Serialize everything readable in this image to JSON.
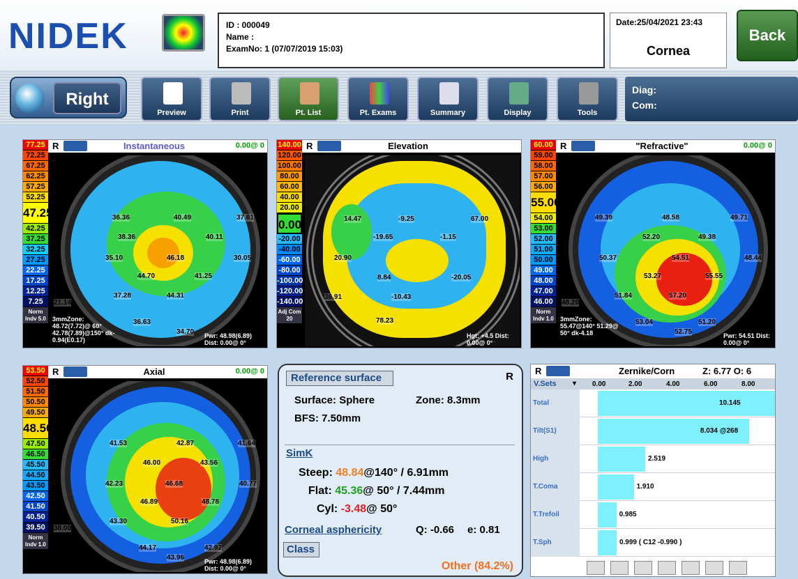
{
  "header": {
    "logo": "NIDEK",
    "id": "ID : 000049",
    "name": "Name :",
    "exam": "ExamNo: 1 (07/07/2019 15:03)",
    "date": "Date:25/04/2021 23:43",
    "exam_type": "Cornea",
    "back": "Back"
  },
  "toolbar": {
    "eye": "Right",
    "buttons": [
      "Preview",
      "Print",
      "Pt. List",
      "Pt. Exams",
      "Summary",
      "Display",
      "Tools"
    ],
    "diag": "Diag:",
    "com": "Com:"
  },
  "panels": [
    {
      "title": "Instantaneous",
      "side": "R",
      "status": "0.00@ 0",
      "scale": [
        "77.25",
        "72.25",
        "67.25",
        "62.25",
        "57.25",
        "52.25",
        "47.25",
        "42.25",
        "37.25",
        "32.25",
        "27.25",
        "22.25",
        "17.25",
        "12.25",
        "7.25"
      ],
      "scale_bottom": "Norm Indv 5.0",
      "values": [
        "36.36",
        "40.49",
        "37.61",
        "38.36",
        "40.11",
        "35.10",
        "46.18",
        "30.05",
        "44.70",
        "41.25",
        "37.28",
        "44.31",
        "21.14",
        "36.63",
        "34.70"
      ],
      "footer_left": "3mmZone: 48.72(7.72)@ 60° 42.78(7.89)@150° dk-0.94(E0.17)",
      "footer_right": "Pwr: 48.98(6.89) Dist: 0.00@ 0°"
    },
    {
      "title": "Elevation",
      "side": "R",
      "status": "",
      "scale": [
        "140.00",
        "120.00",
        "100.00",
        "80.00",
        "60.00",
        "40.00",
        "20.00",
        "0.00",
        "-20.00",
        "-40.00",
        "-60.00",
        "-80.00",
        "-100.00",
        "-120.00",
        "-140.00"
      ],
      "scale_bottom": "Adj Com 20",
      "values": [
        "14.47",
        "-9.25",
        "67.00",
        "-19.65",
        "-1.15",
        "20.90",
        "8.84",
        "-20.05",
        "36.91",
        "-10.43",
        "78.23"
      ],
      "footer_right": "Hgt: +4.5 Dist: 0.00@ 0°"
    },
    {
      "title": "\"Refractive\"",
      "side": "R",
      "status": "0.00@ 0",
      "scale": [
        "60.00",
        "59.00",
        "58.00",
        "57.00",
        "56.00",
        "55.00",
        "54.00",
        "53.00",
        "52.00",
        "51.00",
        "50.00",
        "49.00",
        "48.00",
        "47.00",
        "46.00"
      ],
      "scale_bottom": "Norm Indv 1.0",
      "values": [
        "49.39",
        "48.58",
        "49.71",
        "52.20",
        "49.38",
        "50.37",
        "54.51",
        "48.44",
        "53.27",
        "55.55",
        "51.84",
        "57.20",
        "48.20",
        "53.04",
        "51.20",
        "52.75"
      ],
      "footer_left": "3mmZone: 55.47@140° 51.29@ 50° dk-4.18",
      "footer_right": "Pwr: 54.51 Dist: 0.00@ 0°"
    },
    {
      "title": "Axial",
      "side": "R",
      "status": "0.00@ 0",
      "scale": [
        "53.50",
        "52.50",
        "51.50",
        "50.50",
        "49.50",
        "48.50",
        "47.50",
        "46.50",
        "45.50",
        "44.50",
        "43.50",
        "42.50",
        "41.50",
        "40.50",
        "39.50"
      ],
      "scale_bottom": "Norm Indv 1.0",
      "values": [
        "41.53",
        "42.87",
        "41.64",
        "46.00",
        "43.56",
        "42.23",
        "46.68",
        "40.77",
        "46.89",
        "48.78",
        "43.30",
        "50.16",
        "38.00",
        "44.17",
        "42.92",
        "43.96"
      ],
      "footer_right": "Pwr: 48.98(6.89) Dist: 0.00@ 0°"
    }
  ],
  "reference": {
    "button": "Reference surface",
    "side": "R",
    "surface": "Surface:  Sphere",
    "zone": "Zone:  8.3mm",
    "bfs": "BFS:  7.50mm",
    "simk": "SimK",
    "steep_lbl": "Steep:",
    "steep_val": "48.84",
    "steep_rest": "@140° / 6.91mm",
    "flat_lbl": "Flat:",
    "flat_val": "45.36",
    "flat_rest": "@ 50° / 7.44mm",
    "cyl_lbl": "Cyl:",
    "cyl_val": "-3.48",
    "cyl_rest": "@ 50°",
    "asph": "Corneal asphericity",
    "q": "Q: -0.66",
    "e": "e: 0.81",
    "class": "Class",
    "class_result": "Other (84.2%)"
  },
  "zernike": {
    "side": "R",
    "title": "Zernike/Corn",
    "zo": "Z: 6.77  O: 6",
    "vsets": "V.Sets",
    "ticks": [
      "0.00",
      "2.00",
      "4.00",
      "6.00",
      "8.00"
    ],
    "rows": [
      {
        "label": "Total",
        "value": 10.145,
        "text": "10.145"
      },
      {
        "label": "Tilt(S1)",
        "value": 8.034,
        "text": "8.034 @268"
      },
      {
        "label": "High",
        "value": 2.519,
        "text": "2.519"
      },
      {
        "label": "T.Coma",
        "value": 1.91,
        "text": "1.910"
      },
      {
        "label": "T.Trefoil",
        "value": 0.985,
        "text": "0.985"
      },
      {
        "label": "T.Sph",
        "value": 0.999,
        "text": "0.999 ( C12 -0.990 )"
      }
    ]
  }
}
